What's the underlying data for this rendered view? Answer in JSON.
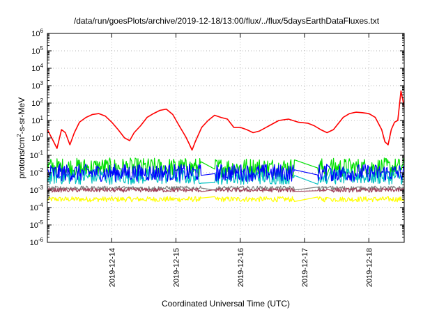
{
  "chart_data": {
    "type": "line",
    "title": "/data/run/goesPlots/archive/2019-12-18/13:00/flux/../flux/5daysEarthDataFluxes.txt",
    "xlabel": "Coordinated Universal Time (UTC)",
    "ylabel": "protons/cm²-s-sr-MeV",
    "ylabel_parts": {
      "pre": "protons/cm",
      "sup": "2",
      "post": "-s-sr-MeV"
    },
    "yscale": "log",
    "ylim_exponents": [
      -6,
      6
    ],
    "y_tick_labels": [
      {
        "base": "10",
        "exp": "-6"
      },
      {
        "base": "10",
        "exp": "-5"
      },
      {
        "base": "10",
        "exp": "-4"
      },
      {
        "base": "10",
        "exp": "-3"
      },
      {
        "base": "10",
        "exp": "-2"
      },
      {
        "base": "10",
        "exp": "-1"
      },
      {
        "base": "10",
        "exp": "0"
      },
      {
        "base": "10",
        "exp": "1"
      },
      {
        "base": "10",
        "exp": "2"
      },
      {
        "base": "10",
        "exp": "3"
      },
      {
        "base": "10",
        "exp": "4"
      },
      {
        "base": "10",
        "exp": "5"
      },
      {
        "base": "10",
        "exp": "6"
      }
    ],
    "x_range_days": [
      13.0,
      18.55
    ],
    "x_tick_labels": [
      "2019-12-14",
      "2019-12-15",
      "2019-12-16",
      "2019-12-17",
      "2019-12-18"
    ],
    "x_tick_days": [
      14,
      15,
      16,
      17,
      18
    ],
    "grid": true,
    "gaps": [
      [
        15.4,
        15.6
      ],
      [
        16.85,
        17.2
      ],
      [
        17.35,
        17.4
      ]
    ],
    "series": [
      {
        "color": "#ff0000",
        "x": [
          13.0,
          13.08,
          13.15,
          13.22,
          13.28,
          13.35,
          13.42,
          13.5,
          13.6,
          13.7,
          13.8,
          13.9,
          14.0,
          14.1,
          14.2,
          14.28,
          14.35,
          14.45,
          14.55,
          14.65,
          14.75,
          14.85,
          14.95,
          15.05,
          15.15,
          15.2,
          15.25,
          15.3,
          15.4,
          15.5,
          15.6,
          15.7,
          15.8,
          15.9,
          16.0,
          16.1,
          16.2,
          16.3,
          16.45,
          16.6,
          16.75,
          16.9,
          17.05,
          17.15,
          17.25,
          17.35,
          17.45,
          17.6,
          17.7,
          17.8,
          17.9,
          18.0,
          18.1,
          18.2,
          18.25,
          18.3,
          18.35,
          18.4,
          18.45,
          18.5,
          18.55
        ],
        "y": [
          3.0,
          0.8,
          0.25,
          3.0,
          2.0,
          0.4,
          2.0,
          8,
          15,
          22,
          25,
          18,
          8,
          3,
          1,
          0.7,
          2.0,
          5,
          15,
          25,
          38,
          45,
          22,
          5,
          1.2,
          0.5,
          0.2,
          0.6,
          4,
          10,
          20,
          15,
          12,
          4,
          4,
          3,
          2,
          2.5,
          5,
          10,
          12,
          8,
          7,
          5,
          3,
          2,
          3,
          15,
          25,
          30,
          28,
          25,
          15,
          3,
          0.6,
          0.4,
          3,
          8,
          10,
          500,
          60
        ]
      },
      {
        "color": "#00e000",
        "x": [
          13.0,
          14.0,
          15.0,
          15.6,
          16.0,
          17.0,
          17.2,
          18.0,
          18.55
        ],
        "y": [
          0.02,
          0.02,
          0.02,
          0.02,
          0.02,
          0.02,
          0.02,
          0.02,
          0.02
        ]
      },
      {
        "color": "#00c0c0",
        "x": [
          13.0,
          14.0,
          15.0,
          16.0,
          17.0,
          18.0,
          18.55
        ],
        "y": [
          0.006,
          0.006,
          0.006,
          0.006,
          0.006,
          0.006,
          0.006
        ]
      },
      {
        "color": "#0000ff",
        "x": [
          13.0,
          14.0,
          15.0,
          16.0,
          17.0,
          18.0,
          18.55
        ],
        "y": [
          0.01,
          0.01,
          0.01,
          0.01,
          0.01,
          0.01,
          0.01
        ]
      },
      {
        "color": "#808080",
        "x": [
          13.0,
          14.0,
          15.0,
          16.0,
          17.0,
          18.0,
          18.55
        ],
        "y": [
          0.0013,
          0.0013,
          0.0013,
          0.0013,
          0.0013,
          0.0013,
          0.0013
        ]
      },
      {
        "color": "#a0405a",
        "x": [
          13.0,
          14.0,
          15.0,
          16.0,
          17.0,
          18.0,
          18.55
        ],
        "y": [
          0.001,
          0.001,
          0.001,
          0.001,
          0.001,
          0.001,
          0.001
        ]
      },
      {
        "color": "#ffff00",
        "x": [
          13.0,
          14.0,
          15.0,
          16.0,
          17.0,
          18.0,
          18.55
        ],
        "y": [
          0.0003,
          0.0003,
          0.0003,
          0.0003,
          0.0003,
          0.0003,
          0.0003
        ]
      }
    ]
  }
}
